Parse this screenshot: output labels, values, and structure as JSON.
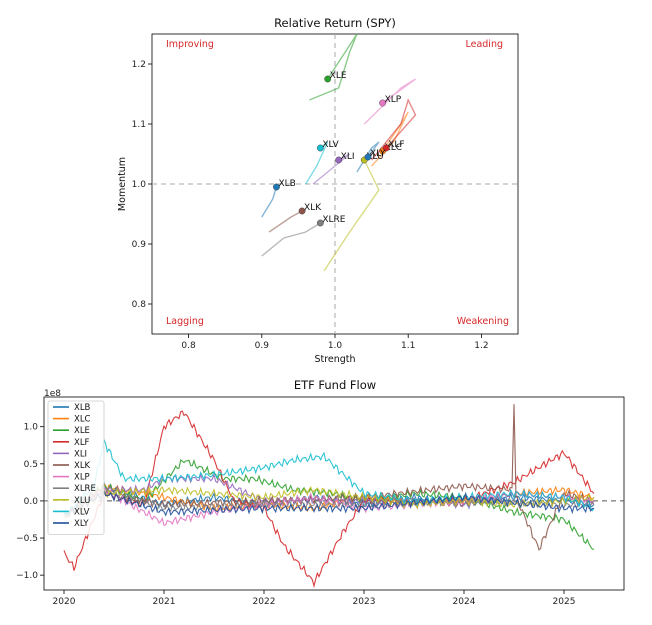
{
  "chart_data": [
    {
      "type": "scatter",
      "title": "Relative Return (SPY)",
      "xlabel": "Strength",
      "ylabel": "Momentum",
      "xlim": [
        0.75,
        1.25
      ],
      "ylim": [
        0.75,
        1.25
      ],
      "x_ticks": [
        "0.8",
        "0.9",
        "1.0",
        "1.1",
        "1.2"
      ],
      "y_ticks": [
        "0.8",
        "0.9",
        "1.0",
        "1.1",
        "1.2"
      ],
      "reference_lines": {
        "x": 1.0,
        "y": 1.0,
        "style": "dashed"
      },
      "quadrants": {
        "top_left": "Improving",
        "top_right": "Leading",
        "bottom_left": "Lagging",
        "bottom_right": "Weakening"
      },
      "points": [
        {
          "name": "XLB",
          "x": 0.92,
          "y": 0.995,
          "color": "#1f77b4",
          "trail": [
            [
              0.9,
              0.945
            ],
            [
              0.915,
              0.975
            ],
            [
              0.92,
              0.995
            ]
          ]
        },
        {
          "name": "XLC",
          "x": 1.065,
          "y": 1.055,
          "color": "#ff7f0e",
          "trail": [
            [
              1.05,
              1.03
            ],
            [
              1.08,
              1.07
            ],
            [
              1.1,
              1.12
            ],
            [
              1.09,
              1.1
            ],
            [
              1.065,
              1.055
            ]
          ]
        },
        {
          "name": "XLE",
          "x": 0.99,
          "y": 1.175,
          "color": "#2ca02c",
          "trail": [
            [
              0.965,
              1.14
            ],
            [
              1.005,
              1.16
            ],
            [
              1.02,
              1.22
            ],
            [
              1.03,
              1.25
            ],
            [
              0.99,
              1.175
            ]
          ]
        },
        {
          "name": "XLF",
          "x": 1.07,
          "y": 1.06,
          "color": "#d62728",
          "trail": [
            [
              1.05,
              1.04
            ],
            [
              1.09,
              1.1
            ],
            [
              1.1,
              1.14
            ],
            [
              1.11,
              1.115
            ],
            [
              1.07,
              1.06
            ]
          ]
        },
        {
          "name": "XLI",
          "x": 1.005,
          "y": 1.04,
          "color": "#9467bd",
          "trail": [
            [
              0.97,
              1.0
            ],
            [
              0.99,
              1.02
            ],
            [
              1.02,
              1.05
            ],
            [
              1.005,
              1.04
            ]
          ]
        },
        {
          "name": "XLK",
          "x": 0.955,
          "y": 0.955,
          "color": "#8c564b",
          "trail": [
            [
              0.91,
              0.92
            ],
            [
              0.94,
              0.945
            ],
            [
              0.955,
              0.955
            ]
          ]
        },
        {
          "name": "XLP",
          "x": 1.065,
          "y": 1.135,
          "color": "#e377c2",
          "trail": [
            [
              1.04,
              1.1
            ],
            [
              1.09,
              1.16
            ],
            [
              1.11,
              1.175
            ],
            [
              1.065,
              1.135
            ]
          ]
        },
        {
          "name": "XLRE",
          "x": 0.98,
          "y": 0.935,
          "color": "#7f7f7f",
          "trail": [
            [
              0.9,
              0.88
            ],
            [
              0.93,
              0.91
            ],
            [
              0.96,
              0.92
            ],
            [
              0.98,
              0.935
            ]
          ]
        },
        {
          "name": "XLU",
          "x": 1.04,
          "y": 1.04,
          "color": "#bcbd22",
          "trail": [
            [
              0.985,
              0.855
            ],
            [
              1.02,
              0.92
            ],
            [
              1.06,
              0.99
            ],
            [
              1.04,
              1.04
            ]
          ]
        },
        {
          "name": "XLV",
          "x": 0.98,
          "y": 1.06,
          "color": "#17becf",
          "trail": [
            [
              0.96,
              1.0
            ],
            [
              0.975,
              1.03
            ],
            [
              0.99,
              1.07
            ],
            [
              0.98,
              1.06
            ]
          ]
        },
        {
          "name": "XLY",
          "x": 1.045,
          "y": 1.045,
          "color": "#1f77b4",
          "trail": [
            [
              1.03,
              1.02
            ],
            [
              1.05,
              1.06
            ],
            [
              1.06,
              1.07
            ],
            [
              1.045,
              1.045
            ]
          ]
        }
      ]
    },
    {
      "type": "line",
      "title": "ETF Fund Flow",
      "y_multiplier": "1e8",
      "xlim": [
        2019.8,
        2025.6
      ],
      "ylim": [
        -1.2,
        1.4
      ],
      "x_ticks": [
        "2020",
        "2021",
        "2022",
        "2023",
        "2024",
        "2025"
      ],
      "y_ticks": [
        "1.0",
        "0.5",
        "0.0",
        "−0.5",
        "−1.0"
      ],
      "zero_line": {
        "y": 0.0,
        "style": "dashed"
      },
      "legend_position": "upper-left",
      "series": [
        {
          "name": "XLB",
          "color": "#1f77b4",
          "values": [
            [
              2020.0,
              -0.2
            ],
            [
              2020.4,
              0.2
            ],
            [
              2021.0,
              -0.05
            ],
            [
              2021.5,
              0.05
            ],
            [
              2022.0,
              -0.05
            ],
            [
              2022.5,
              0.05
            ],
            [
              2023.0,
              -0.05
            ],
            [
              2023.5,
              0.05
            ],
            [
              2024.0,
              -0.05
            ],
            [
              2024.5,
              0.05
            ],
            [
              2025.0,
              0.0
            ],
            [
              2025.3,
              -0.05
            ]
          ]
        },
        {
          "name": "XLC",
          "color": "#ff7f0e",
          "values": [
            [
              2020.0,
              -0.2
            ],
            [
              2020.4,
              0.2
            ],
            [
              2021.0,
              0.05
            ],
            [
              2021.5,
              -0.1
            ],
            [
              2022.0,
              -0.05
            ],
            [
              2022.5,
              -0.1
            ],
            [
              2023.0,
              0.05
            ],
            [
              2023.5,
              0.0
            ],
            [
              2024.0,
              -0.05
            ],
            [
              2024.5,
              0.1
            ],
            [
              2025.0,
              0.15
            ],
            [
              2025.3,
              0.05
            ]
          ]
        },
        {
          "name": "XLE",
          "color": "#2ca02c",
          "values": [
            [
              2020.0,
              -0.2
            ],
            [
              2020.4,
              0.2
            ],
            [
              2020.8,
              0.0
            ],
            [
              2021.2,
              0.55
            ],
            [
              2021.6,
              0.3
            ],
            [
              2021.9,
              0.3
            ],
            [
              2022.3,
              0.15
            ],
            [
              2022.7,
              0.1
            ],
            [
              2023.0,
              0.0
            ],
            [
              2023.5,
              0.1
            ],
            [
              2024.0,
              0.05
            ],
            [
              2024.5,
              -0.15
            ],
            [
              2025.0,
              -0.25
            ],
            [
              2025.3,
              -0.65
            ]
          ]
        },
        {
          "name": "XLF",
          "color": "#d62728",
          "values": [
            [
              2020.0,
              -0.7
            ],
            [
              2020.1,
              -0.9
            ],
            [
              2020.4,
              0.1
            ],
            [
              2020.8,
              -0.05
            ],
            [
              2021.0,
              1.0
            ],
            [
              2021.2,
              1.2
            ],
            [
              2021.5,
              0.55
            ],
            [
              2021.7,
              0.0
            ],
            [
              2022.0,
              -0.1
            ],
            [
              2022.2,
              -0.6
            ],
            [
              2022.5,
              -1.1
            ],
            [
              2022.8,
              -0.4
            ],
            [
              2023.0,
              0.0
            ],
            [
              2023.5,
              0.0
            ],
            [
              2024.0,
              0.0
            ],
            [
              2024.5,
              0.25
            ],
            [
              2025.0,
              0.65
            ],
            [
              2025.3,
              0.1
            ]
          ]
        },
        {
          "name": "XLI",
          "color": "#9467bd",
          "values": [
            [
              2020.0,
              -0.2
            ],
            [
              2020.4,
              0.15
            ],
            [
              2020.8,
              0.15
            ],
            [
              2021.0,
              0.3
            ],
            [
              2021.5,
              0.3
            ],
            [
              2022.0,
              0.0
            ],
            [
              2022.5,
              0.0
            ],
            [
              2023.0,
              0.0
            ],
            [
              2023.5,
              0.0
            ],
            [
              2024.0,
              -0.05
            ],
            [
              2024.5,
              0.1
            ],
            [
              2025.0,
              0.05
            ],
            [
              2025.3,
              0.0
            ]
          ]
        },
        {
          "name": "XLK",
          "color": "#8c564b",
          "values": [
            [
              2020.0,
              -0.2
            ],
            [
              2020.4,
              0.1
            ],
            [
              2021.0,
              -0.05
            ],
            [
              2022.0,
              0.0
            ],
            [
              2023.0,
              0.05
            ],
            [
              2024.0,
              0.2
            ],
            [
              2024.48,
              0.15
            ],
            [
              2024.5,
              1.35
            ],
            [
              2024.52,
              0.05
            ],
            [
              2024.75,
              -0.65
            ],
            [
              2025.0,
              0.1
            ],
            [
              2025.3,
              0.0
            ]
          ]
        },
        {
          "name": "XLP",
          "color": "#e377c2",
          "values": [
            [
              2020.0,
              -0.2
            ],
            [
              2020.4,
              0.15
            ],
            [
              2021.0,
              -0.3
            ],
            [
              2021.5,
              -0.15
            ],
            [
              2022.0,
              -0.05
            ],
            [
              2022.5,
              0.05
            ],
            [
              2023.0,
              -0.1
            ],
            [
              2023.5,
              -0.05
            ],
            [
              2024.0,
              0.0
            ],
            [
              2024.5,
              0.1
            ],
            [
              2025.0,
              0.05
            ],
            [
              2025.3,
              0.0
            ]
          ]
        },
        {
          "name": "XLRE",
          "color": "#7f7f7f",
          "values": [
            [
              2020.0,
              -0.2
            ],
            [
              2020.4,
              0.15
            ],
            [
              2021.0,
              -0.1
            ],
            [
              2022.0,
              -0.05
            ],
            [
              2023.0,
              -0.05
            ],
            [
              2024.0,
              0.0
            ],
            [
              2025.0,
              -0.05
            ],
            [
              2025.3,
              -0.05
            ]
          ]
        },
        {
          "name": "XLU",
          "color": "#bcbd22",
          "values": [
            [
              2020.0,
              -0.2
            ],
            [
              2020.4,
              0.1
            ],
            [
              2021.0,
              0.15
            ],
            [
              2021.5,
              0.1
            ],
            [
              2022.0,
              0.05
            ],
            [
              2022.5,
              0.15
            ],
            [
              2023.0,
              0.05
            ],
            [
              2023.5,
              -0.05
            ],
            [
              2024.0,
              0.0
            ],
            [
              2024.5,
              -0.05
            ],
            [
              2025.0,
              0.0
            ],
            [
              2025.3,
              0.05
            ]
          ]
        },
        {
          "name": "XLV",
          "color": "#17becf",
          "values": [
            [
              2020.0,
              -0.2
            ],
            [
              2020.3,
              0.2
            ],
            [
              2020.4,
              0.8
            ],
            [
              2020.6,
              0.3
            ],
            [
              2021.0,
              0.3
            ],
            [
              2021.5,
              0.35
            ],
            [
              2022.0,
              0.45
            ],
            [
              2022.3,
              0.55
            ],
            [
              2022.6,
              0.6
            ],
            [
              2023.0,
              0.1
            ],
            [
              2023.5,
              0.0
            ],
            [
              2024.0,
              0.05
            ],
            [
              2024.5,
              0.1
            ],
            [
              2025.0,
              0.05
            ],
            [
              2025.3,
              -0.1
            ]
          ]
        },
        {
          "name": "XLY",
          "color": "#1f4e9c",
          "values": [
            [
              2020.0,
              -0.2
            ],
            [
              2020.4,
              0.1
            ],
            [
              2021.0,
              -0.15
            ],
            [
              2022.0,
              -0.1
            ],
            [
              2023.0,
              -0.1
            ],
            [
              2024.0,
              0.05
            ],
            [
              2025.0,
              -0.1
            ],
            [
              2025.3,
              -0.1
            ]
          ]
        }
      ]
    }
  ]
}
